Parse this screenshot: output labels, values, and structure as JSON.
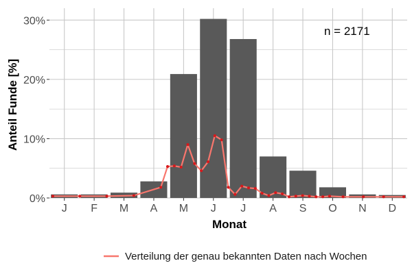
{
  "chart_data": {
    "type": "bar",
    "xlabel": "Monat",
    "ylabel": "Anteil Funde [%]",
    "categories": [
      "J",
      "F",
      "M",
      "A",
      "M",
      "J",
      "J",
      "A",
      "S",
      "O",
      "N",
      "D"
    ],
    "ylim": [
      0,
      32
    ],
    "yticks": [
      0,
      10,
      20,
      30
    ],
    "ytick_labels": [
      "0%",
      "10%",
      "20%",
      "30%"
    ],
    "series": [
      {
        "type": "bar",
        "values": [
          0.6,
          0.6,
          0.9,
          2.8,
          20.9,
          30.2,
          26.8,
          7.0,
          4.6,
          1.8,
          0.6,
          0.5
        ],
        "color": "#595959"
      },
      {
        "name": "Verteilung der genau bekannten Daten nach Wochen",
        "type": "line",
        "x": [
          1,
          5,
          9,
          13,
          17,
          18,
          19,
          20,
          21,
          22,
          23,
          24,
          25,
          26,
          27,
          28,
          29,
          30,
          31,
          32,
          33,
          34,
          35,
          36,
          37,
          38,
          39,
          40,
          41,
          42,
          44,
          47,
          50,
          53
        ],
        "values": [
          0.3,
          0.3,
          0.3,
          0.4,
          1.8,
          5.3,
          5.4,
          5.2,
          9.0,
          5.8,
          4.6,
          6.1,
          10.5,
          9.8,
          1.8,
          0.6,
          2.0,
          1.7,
          1.6,
          0.8,
          0.4,
          0.9,
          0.7,
          0.2,
          0.3,
          0.4,
          0.3,
          0.2,
          0.2,
          0.3,
          0.2,
          0.2,
          0.2,
          0.2
        ],
        "color": "#f8766d",
        "point_color": "#d7191c"
      }
    ],
    "annotations": [
      {
        "text": "n = 2171"
      }
    ],
    "grid": true,
    "legend_position": "bottom-right"
  },
  "colors": {
    "bar": "#595959",
    "line": "#f8766d",
    "point": "#d7191c",
    "grid": "#c8c8c8",
    "tick_text": "#4d4d4d"
  }
}
